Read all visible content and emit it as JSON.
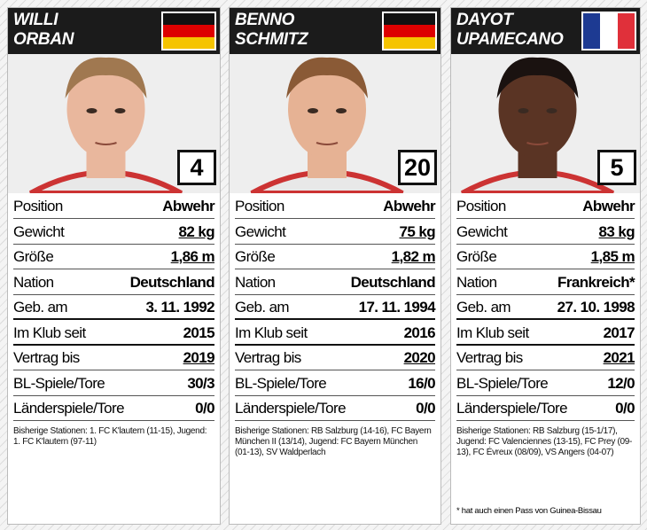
{
  "cards": [
    {
      "name": [
        "WILLI",
        "ORBAN"
      ],
      "flag": "de",
      "number": 4,
      "rows": [
        [
          "Position",
          "Abwehr"
        ],
        [
          "Gewicht",
          "82 kg"
        ],
        [
          "Größe",
          "1,86 m"
        ],
        [
          "Nation",
          "Deutschland"
        ],
        [
          "Geb. am",
          "3. 11. 1992"
        ],
        [
          "Im Klub seit",
          "2015"
        ],
        [
          "Vertrag bis",
          "2019"
        ],
        [
          "BL-Spiele/Tore",
          "30/3"
        ],
        [
          "Länderspiele/Tore",
          "0/0"
        ]
      ],
      "stations": "Bisherige Stationen: 1. FC K'lautern (11-15), Jugend: 1. FC K'lautern (97-11)"
    },
    {
      "name": [
        "BENNO",
        "SCHMITZ"
      ],
      "flag": "de",
      "number": 20,
      "rows": [
        [
          "Position",
          "Abwehr"
        ],
        [
          "Gewicht",
          "75 kg"
        ],
        [
          "Größe",
          "1,82 m"
        ],
        [
          "Nation",
          "Deutschland"
        ],
        [
          "Geb. am",
          "17. 11. 1994"
        ],
        [
          "Im Klub seit",
          "2016"
        ],
        [
          "Vertrag bis",
          "2020"
        ],
        [
          "BL-Spiele/Tore",
          "16/0"
        ],
        [
          "Länderspiele/Tore",
          "0/0"
        ]
      ],
      "stations": "Bisherige Stationen: RB Salzburg (14-16), FC Bayern München II (13/14), Jugend: FC Bayern München (01-13), SV Waldperlach"
    },
    {
      "name": [
        "DAYOT",
        "UPAMECANO"
      ],
      "flag": "fr",
      "number": 5,
      "rows": [
        [
          "Position",
          "Abwehr"
        ],
        [
          "Gewicht",
          "83 kg"
        ],
        [
          "Größe",
          "1,85 m"
        ],
        [
          "Nation",
          "Frankreich*"
        ],
        [
          "Geb. am",
          "27. 10. 1998"
        ],
        [
          "Im Klub seit",
          "2017"
        ],
        [
          "Vertrag bis",
          "2021"
        ],
        [
          "BL-Spiele/Tore",
          "12/0"
        ],
        [
          "Länderspiele/Tore",
          "0/0"
        ]
      ],
      "stations": "Bisherige Stationen: RB Salzburg (15-1/17), Jugend: FC Valenciennes (13-15), FC Prey (09-13), FC Évreux (08/09), VS Angers (04-07)",
      "footnote": "* hat auch einen Pass von Guinea-Bissau"
    }
  ]
}
